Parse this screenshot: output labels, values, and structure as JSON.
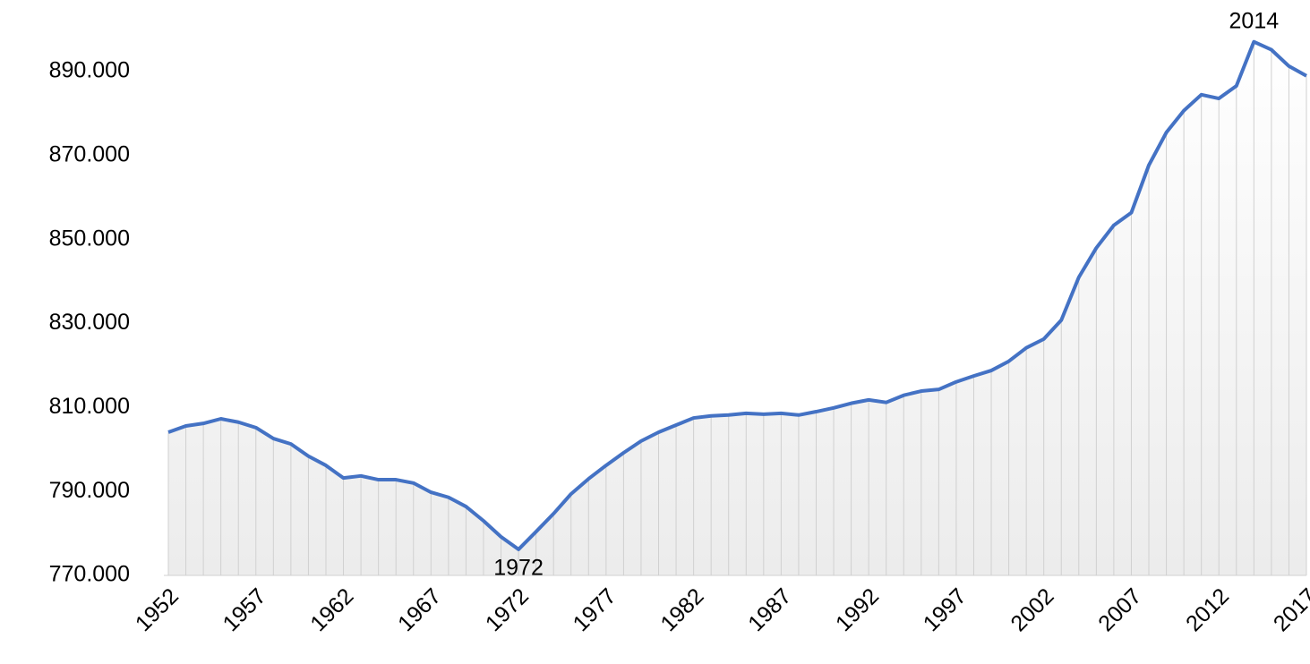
{
  "chart_data": {
    "type": "line",
    "x": [
      1952,
      1953,
      1954,
      1955,
      1956,
      1957,
      1958,
      1959,
      1960,
      1961,
      1962,
      1963,
      1964,
      1965,
      1966,
      1967,
      1968,
      1969,
      1970,
      1971,
      1972,
      1973,
      1974,
      1975,
      1976,
      1977,
      1978,
      1979,
      1980,
      1981,
      1982,
      1983,
      1984,
      1985,
      1986,
      1987,
      1988,
      1989,
      1990,
      1991,
      1992,
      1993,
      1994,
      1995,
      1996,
      1997,
      1998,
      1999,
      2000,
      2001,
      2002,
      2003,
      2004,
      2005,
      2006,
      2007,
      2008,
      2009,
      2010,
      2011,
      2012,
      2013,
      2014,
      2015,
      2016,
      2017
    ],
    "series": [
      {
        "color": "#4472c4",
        "values": [
          804100,
          805600,
          806200,
          807300,
          806500,
          805200,
          802600,
          801300,
          798400,
          796200,
          793200,
          793700,
          792800,
          792800,
          792000,
          789800,
          788600,
          786400,
          783000,
          779200,
          776200,
          780400,
          784700,
          789400,
          793000,
          796200,
          799200,
          802000,
          804100,
          805800,
          807500,
          808000,
          808200,
          808600,
          808400,
          808600,
          808200,
          809000,
          809900,
          811000,
          811800,
          811200,
          812900,
          813900,
          814300,
          816100,
          817500,
          818800,
          821000,
          824200,
          826300,
          830800,
          841000,
          848000,
          853400,
          856400,
          867700,
          875500,
          880700,
          884500,
          883600,
          886600,
          897100,
          895200,
          891300,
          889000
        ]
      }
    ],
    "xlim": [
      1952,
      2017
    ],
    "xticks": [
      1952,
      1957,
      1962,
      1967,
      1972,
      1977,
      1982,
      1987,
      1992,
      1997,
      2002,
      2007,
      2012,
      2017
    ],
    "ylim": [
      770000,
      890000
    ],
    "yticks": [
      {
        "value": 770000,
        "label": "770.000"
      },
      {
        "value": 790000,
        "label": "790.000"
      },
      {
        "value": 810000,
        "label": "810.000"
      },
      {
        "value": 830000,
        "label": "830.000"
      },
      {
        "value": 850000,
        "label": "850.000"
      },
      {
        "value": 870000,
        "label": "870.000"
      },
      {
        "value": 890000,
        "label": "890.000"
      }
    ],
    "drop_lines": true,
    "annotations": [
      {
        "text": "1972",
        "x": 1972,
        "position": "below"
      },
      {
        "text": "2014",
        "x": 2014,
        "position": "above"
      }
    ]
  }
}
